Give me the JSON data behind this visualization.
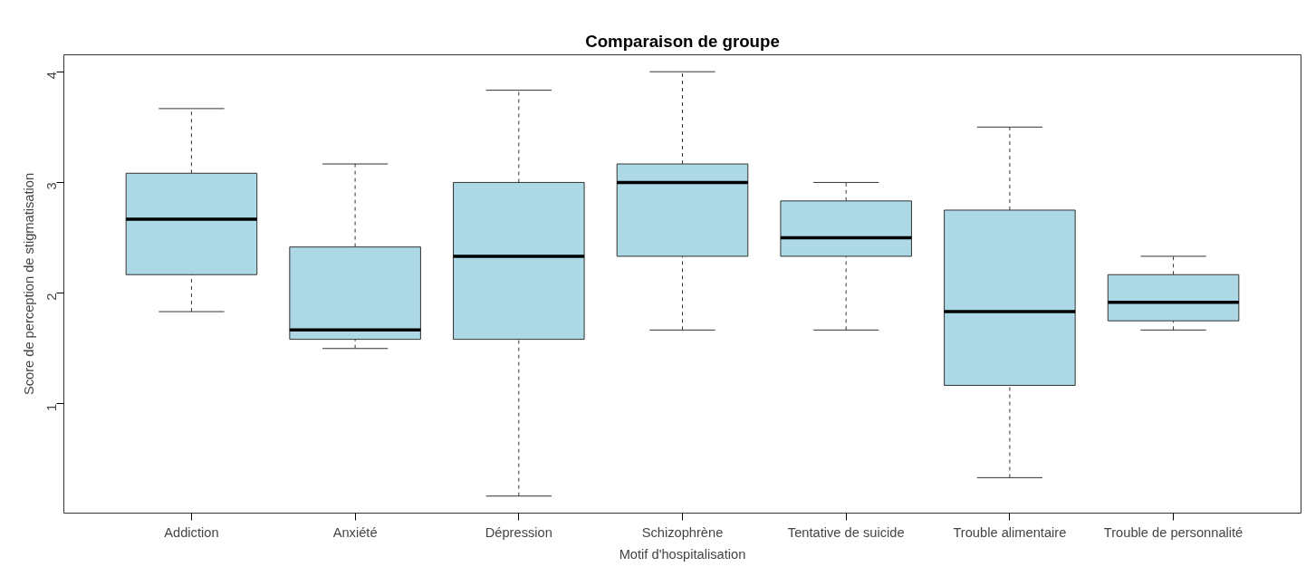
{
  "chart_data": {
    "type": "box",
    "title": "Comparaison de groupe",
    "xlabel": "Motif d'hospitalisation",
    "ylabel": "Score de perception de stigmatisation",
    "categories": [
      "Addiction",
      "Anxiété",
      "Dépression",
      "Schizophrène",
      "Tentative de suicide",
      "Trouble alimentaire",
      "Trouble de personnalité"
    ],
    "color": "#add8e6",
    "boxes": [
      {
        "low": 1.833,
        "q1": 2.167,
        "median": 2.667,
        "q3": 3.083,
        "high": 3.667
      },
      {
        "low": 1.5,
        "q1": 1.583,
        "median": 1.667,
        "q3": 2.417,
        "high": 3.167
      },
      {
        "low": 0.167,
        "q1": 1.583,
        "median": 2.333,
        "q3": 3.0,
        "high": 3.833
      },
      {
        "low": 1.667,
        "q1": 2.333,
        "median": 3.0,
        "q3": 3.167,
        "high": 4.0
      },
      {
        "low": 1.667,
        "q1": 2.333,
        "median": 2.5,
        "q3": 2.833,
        "high": 3.0
      },
      {
        "low": 0.333,
        "q1": 1.167,
        "median": 1.833,
        "q3": 2.75,
        "high": 3.5
      },
      {
        "low": 1.667,
        "q1": 1.75,
        "median": 1.917,
        "q3": 2.167,
        "high": 2.333
      }
    ],
    "ylim": [
      0.013,
      4.153
    ],
    "yticks": [
      1,
      2,
      3,
      4
    ],
    "grid": false
  }
}
